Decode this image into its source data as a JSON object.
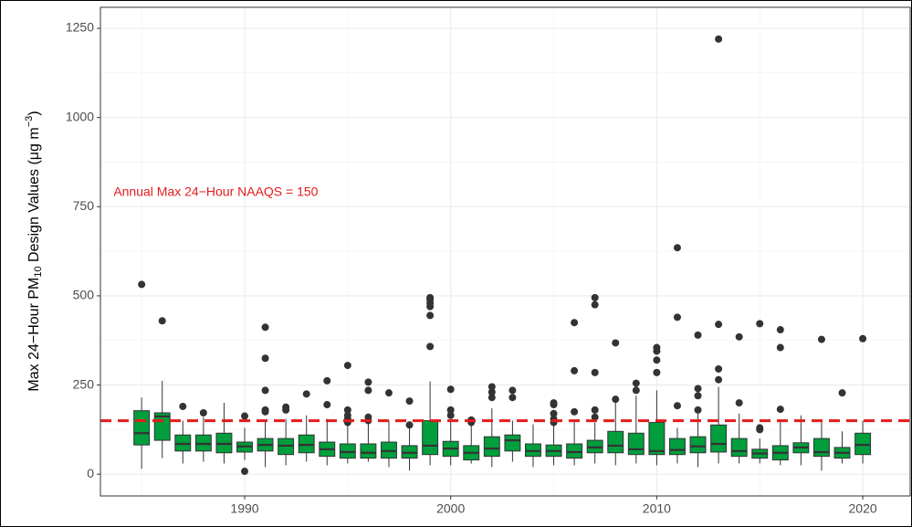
{
  "chart_data": {
    "type": "box",
    "y_label": [
      "Max 24−Hour PM",
      "10",
      " Design Values (μg m",
      "−3",
      ")"
    ],
    "annotation": "Annual Max 24−Hour NAAQS = 150",
    "hline": 150,
    "hline_color": "#e41a1c",
    "color": "#009e3c",
    "x": [
      1985,
      1986,
      1987,
      1988,
      1989,
      1990,
      1991,
      1992,
      1993,
      1994,
      1995,
      1996,
      1997,
      1998,
      1999,
      2000,
      2001,
      2002,
      2003,
      2004,
      2005,
      2006,
      2007,
      2008,
      2009,
      2010,
      2011,
      2012,
      2013,
      2014,
      2015,
      2016,
      2017,
      2018,
      2019,
      2020
    ],
    "whisker_low": [
      15,
      45,
      30,
      35,
      30,
      40,
      20,
      25,
      35,
      25,
      30,
      35,
      20,
      10,
      25,
      25,
      30,
      20,
      35,
      20,
      25,
      25,
      30,
      25,
      30,
      25,
      30,
      20,
      30,
      30,
      30,
      25,
      25,
      10,
      30,
      30
    ],
    "q1": [
      82,
      95,
      65,
      65,
      60,
      62,
      65,
      55,
      60,
      50,
      45,
      45,
      45,
      45,
      55,
      50,
      40,
      50,
      65,
      50,
      50,
      45,
      60,
      60,
      55,
      55,
      55,
      60,
      62,
      50,
      45,
      40,
      60,
      50,
      45,
      55
    ],
    "median": [
      115,
      162,
      85,
      85,
      85,
      78,
      82,
      80,
      82,
      70,
      62,
      60,
      65,
      60,
      80,
      72,
      60,
      72,
      95,
      65,
      65,
      62,
      75,
      80,
      70,
      65,
      68,
      78,
      85,
      65,
      58,
      60,
      75,
      62,
      60,
      82
    ],
    "q3": [
      178,
      172,
      110,
      110,
      115,
      90,
      100,
      100,
      110,
      90,
      85,
      85,
      90,
      80,
      150,
      92,
      80,
      105,
      110,
      85,
      82,
      85,
      95,
      120,
      115,
      145,
      100,
      105,
      138,
      100,
      70,
      80,
      88,
      100,
      75,
      115
    ],
    "whisker_high": [
      215,
      262,
      150,
      160,
      200,
      130,
      150,
      155,
      165,
      155,
      140,
      145,
      150,
      130,
      260,
      155,
      140,
      185,
      150,
      140,
      140,
      150,
      145,
      205,
      220,
      235,
      130,
      170,
      245,
      170,
      100,
      150,
      165,
      150,
      120,
      150
    ],
    "outliers": [
      [
        532
      ],
      [
        430
      ],
      [
        190
      ],
      [
        172
      ],
      [],
      [
        8,
        163
      ],
      [
        175,
        180,
        235,
        325,
        412
      ],
      [
        180,
        188
      ],
      [
        225
      ],
      [
        195,
        262
      ],
      [
        145,
        155,
        165,
        180,
        305
      ],
      [
        150,
        160,
        235,
        258
      ],
      [
        228
      ],
      [
        138,
        205
      ],
      [
        358,
        445,
        470,
        480,
        490,
        495
      ],
      [
        165,
        180,
        238
      ],
      [
        145,
        152
      ],
      [
        215,
        230,
        245
      ],
      [
        215,
        235
      ],
      [],
      [
        145,
        155,
        170,
        195,
        200
      ],
      [
        175,
        290,
        425
      ],
      [
        160,
        180,
        285,
        475,
        495
      ],
      [
        210,
        368
      ],
      [
        235,
        255
      ],
      [
        285,
        320,
        345,
        355
      ],
      [
        192,
        440,
        635
      ],
      [
        180,
        220,
        240,
        390
      ],
      [
        265,
        295,
        420,
        1220
      ],
      [
        200,
        385
      ],
      [
        125,
        130,
        422
      ],
      [
        182,
        355,
        405
      ],
      [],
      [
        378
      ],
      [
        228
      ],
      [
        380
      ]
    ],
    "xlim": [
      1983,
      2022.3
    ],
    "ylim": [
      -61,
      1309
    ],
    "xticks": [
      1990,
      2000,
      2010,
      2020
    ],
    "yticks": [
      0,
      250,
      500,
      750,
      1000,
      1250
    ],
    "grid": true
  }
}
